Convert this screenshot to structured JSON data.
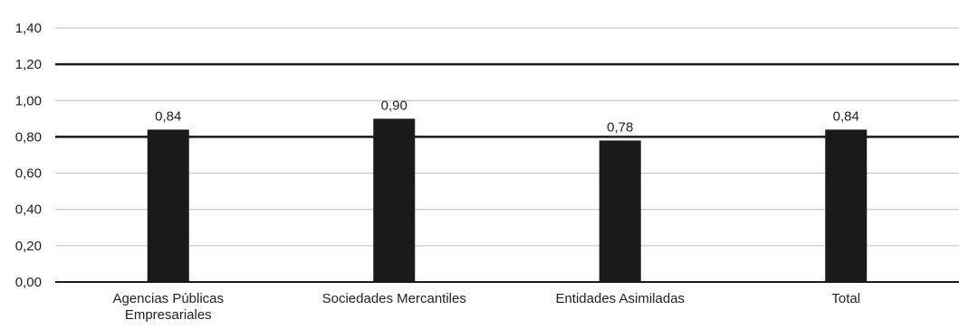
{
  "chart_data": {
    "type": "bar",
    "title": "",
    "xlabel": "",
    "ylabel": "",
    "categories": [
      [
        "Agencias Públicas",
        "Empresariales"
      ],
      [
        "Sociedades Mercantiles"
      ],
      [
        "Entidades Asimiladas"
      ],
      [
        "Total"
      ]
    ],
    "values": [
      0.84,
      0.9,
      0.78,
      0.84
    ],
    "value_labels": [
      "0,84",
      "0,90",
      "0,78",
      "0,84"
    ],
    "ylim": [
      0,
      1.4
    ],
    "yticks": [
      0,
      0.2,
      0.4,
      0.6,
      0.8,
      1.0,
      1.2,
      1.4
    ],
    "ytick_labels": [
      "0,00",
      "0,20",
      "0,40",
      "0,60",
      "0,80",
      "1,00",
      "1,20",
      "1,40"
    ],
    "highlighted_gridlines": [
      "0,80",
      "1,20"
    ],
    "grid": true,
    "legend": "none",
    "colors": {
      "bar": "#1a1a1a",
      "grid": "#bdbdbd",
      "highlight_grid": "#1a1a1a",
      "axis": "#1a1a1a",
      "text": "#222222"
    }
  }
}
